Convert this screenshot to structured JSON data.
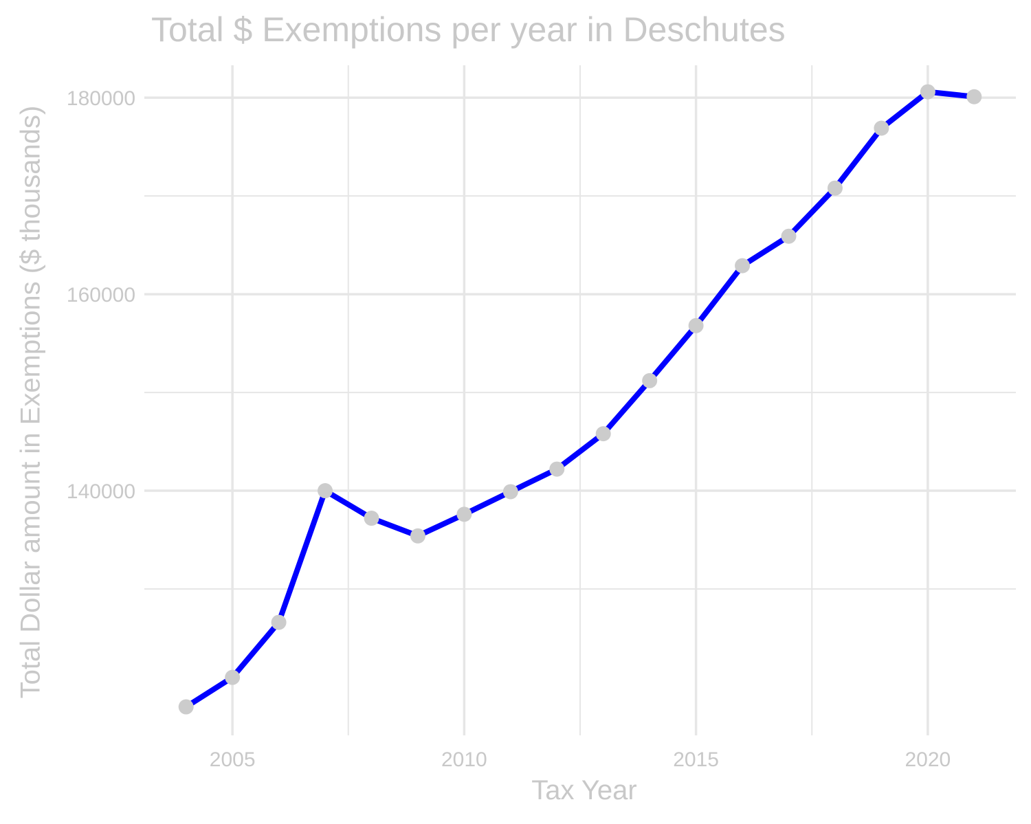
{
  "chart_data": {
    "type": "line",
    "title": "Total $ Exemptions per year in Deschutes",
    "xlabel": "Tax Year",
    "ylabel": "Total Dollar amount in Exemptions ($ thousands)",
    "x": [
      2004,
      2005,
      2006,
      2007,
      2008,
      2009,
      2010,
      2011,
      2012,
      2013,
      2014,
      2015,
      2016,
      2017,
      2018,
      2019,
      2020,
      2021
    ],
    "series": [
      {
        "values": [
          118000,
          121000,
          126600,
          140000,
          137200,
          135400,
          137600,
          139900,
          142200,
          145800,
          151200,
          156800,
          162900,
          165900,
          170800,
          176900,
          180600,
          180100
        ]
      }
    ],
    "xticks": [
      2005,
      2010,
      2015,
      2020
    ],
    "yticks": [
      140000,
      160000,
      180000
    ],
    "xlim": [
      2003.1,
      2021.9
    ],
    "ylim": [
      115100,
      183300
    ],
    "grid": true,
    "colors": {
      "line": "#0000ff",
      "points": "#cccccc",
      "grid": "#e6e6e6",
      "text": "#c8c8c8"
    }
  }
}
